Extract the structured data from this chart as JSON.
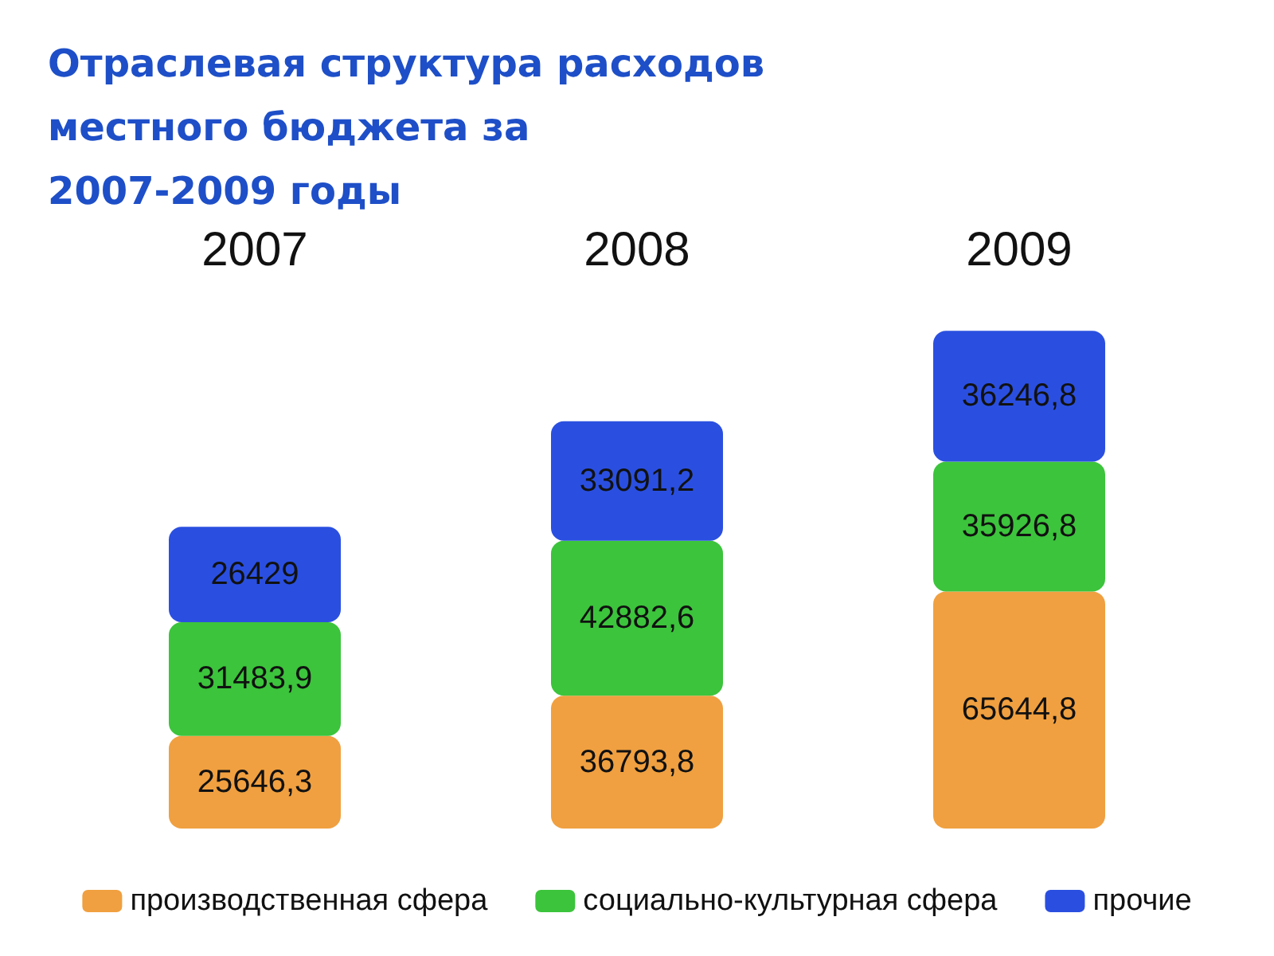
{
  "chart_data": {
    "type": "bar",
    "title": "Отраслевая структура расходов\nместного бюджета за\n2007-2009 годы",
    "categories": [
      "2007",
      "2008",
      "2009"
    ],
    "stacked": true,
    "legend": "bottom",
    "series": [
      {
        "name": "производственная сфера",
        "color": "#f0a040",
        "values": [
          25646.3,
          36793.8,
          65644.8
        ],
        "value_labels": [
          "25646,3",
          "36793,8",
          "65644,8"
        ]
      },
      {
        "name": "социально-культурная сфера",
        "color": "#3cc43c",
        "values": [
          31483.9,
          42882.6,
          35926.8
        ],
        "value_labels": [
          "31483,9",
          "42882,6",
          "35926,8"
        ]
      },
      {
        "name": "прочие",
        "color": "#2a4fe0",
        "values": [
          26429,
          33091.2,
          36246.8
        ],
        "value_labels": [
          "26429",
          "33091,2",
          "36246,8"
        ]
      }
    ]
  }
}
